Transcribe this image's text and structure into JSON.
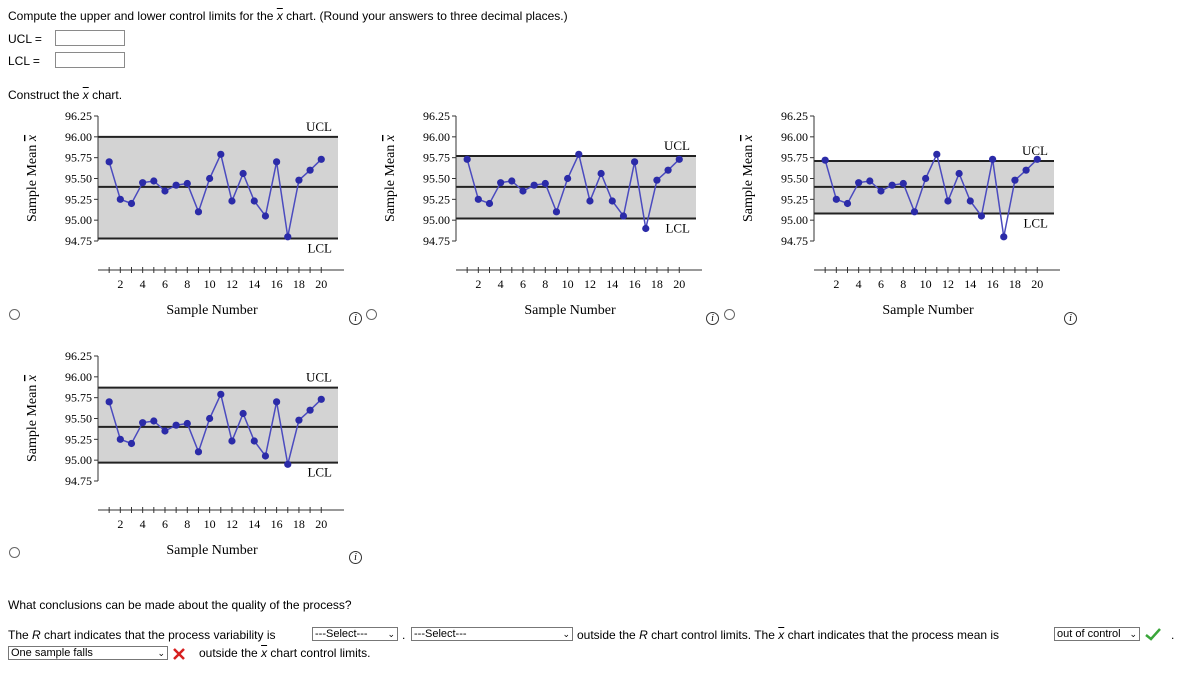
{
  "question": {
    "prompt_pre": "Compute the upper and lower control limits for the",
    "xvar": "x",
    "prompt_post": "chart. (Round your answers to three decimal places.)",
    "ucl_label": "UCL",
    "lcl_label": "LCL",
    "eq": "=",
    "construct_pre": "Construct the",
    "construct_post": "chart."
  },
  "chart_common": {
    "ylabel": "Sample Mean",
    "ylabel_var": "x",
    "xlabel": "Sample Number",
    "yticks": [
      "96.25",
      "96.00",
      "95.75",
      "95.50",
      "95.25",
      "95.00",
      "94.75"
    ],
    "xticks": [
      "2",
      "4",
      "6",
      "8",
      "10",
      "12",
      "14",
      "16",
      "18",
      "20"
    ],
    "ucl_text": "UCL",
    "lcl_text": "LCL"
  },
  "chart_data": [
    {
      "type": "line",
      "ylim": [
        94.75,
        96.25
      ],
      "x": [
        1,
        2,
        3,
        4,
        5,
        6,
        7,
        8,
        9,
        10,
        11,
        12,
        13,
        14,
        15,
        16,
        17,
        18,
        19,
        20
      ],
      "values": [
        95.7,
        95.25,
        95.2,
        95.45,
        95.47,
        95.35,
        95.42,
        95.44,
        95.1,
        95.5,
        95.79,
        95.23,
        95.56,
        95.23,
        95.05,
        95.7,
        94.8,
        95.48,
        95.6,
        95.73
      ],
      "ucl": 96.0,
      "center": 95.4,
      "lcl": 94.78
    },
    {
      "type": "line",
      "ylim": [
        94.75,
        96.25
      ],
      "x": [
        1,
        2,
        3,
        4,
        5,
        6,
        7,
        8,
        9,
        10,
        11,
        12,
        13,
        14,
        15,
        16,
        17,
        18,
        19,
        20
      ],
      "values": [
        95.73,
        95.25,
        95.2,
        95.45,
        95.47,
        95.35,
        95.42,
        95.44,
        95.1,
        95.5,
        95.79,
        95.23,
        95.56,
        95.23,
        95.05,
        95.7,
        94.9,
        95.48,
        95.6,
        95.73
      ],
      "ucl": 95.77,
      "center": 95.4,
      "lcl": 95.02
    },
    {
      "type": "line",
      "ylim": [
        94.75,
        96.25
      ],
      "x": [
        1,
        2,
        3,
        4,
        5,
        6,
        7,
        8,
        9,
        10,
        11,
        12,
        13,
        14,
        15,
        16,
        17,
        18,
        19,
        20
      ],
      "values": [
        95.72,
        95.25,
        95.2,
        95.45,
        95.47,
        95.35,
        95.42,
        95.44,
        95.1,
        95.5,
        95.79,
        95.23,
        95.56,
        95.23,
        95.05,
        95.73,
        94.8,
        95.48,
        95.6,
        95.73
      ],
      "ucl": 95.71,
      "center": 95.4,
      "lcl": 95.08
    },
    {
      "type": "line",
      "ylim": [
        94.75,
        96.25
      ],
      "x": [
        1,
        2,
        3,
        4,
        5,
        6,
        7,
        8,
        9,
        10,
        11,
        12,
        13,
        14,
        15,
        16,
        17,
        18,
        19,
        20
      ],
      "values": [
        95.7,
        95.25,
        95.2,
        95.45,
        95.47,
        95.35,
        95.42,
        95.44,
        95.1,
        95.5,
        95.79,
        95.23,
        95.56,
        95.23,
        95.05,
        95.7,
        94.95,
        95.48,
        95.6,
        95.73
      ],
      "ucl": 95.87,
      "center": 95.4,
      "lcl": 94.97
    }
  ],
  "conclusion": {
    "heading": "What conclusions can be made about the quality of the process?",
    "s1_pre": "The",
    "s1_r": "R",
    "s1_mid": "chart indicates that the process variability is",
    "select1": "---Select---",
    "dot": ".",
    "select2": "---Select---",
    "s2_pre": "outside the",
    "s2_r": "R",
    "s2_mid": "chart control limits. The",
    "s2_x": "x",
    "s2_post": "chart indicates that the process mean is",
    "select3": "out of control",
    "final_dot": ".",
    "select4": "One sample falls",
    "s3_pre": "outside the",
    "s3_x": "x",
    "s3_post": "chart control limits."
  },
  "colors": {
    "point": "#2b2ba8",
    "line": "#4b4bbf",
    "band": "#d3d3d3",
    "check": "#3aa63a",
    "cross": "#d62020"
  },
  "icons": {
    "info": "info-icon",
    "check": "check-icon",
    "cross": "cross-icon",
    "chevron": "chevron-down-icon"
  }
}
